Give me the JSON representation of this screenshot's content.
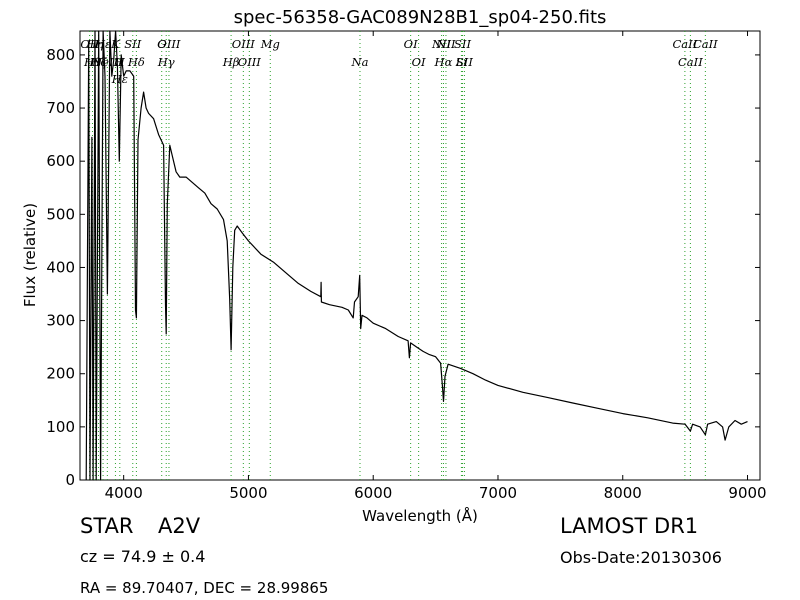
{
  "chart_data": {
    "type": "line",
    "title": "spec-56358-GAC089N28B1_sp04-250.fits",
    "xlabel": "Wavelength (Å)",
    "ylabel": "Flux (relative)",
    "xlim": [
      3650,
      9100
    ],
    "ylim": [
      0,
      845
    ],
    "xticks": [
      4000,
      5000,
      6000,
      7000,
      8000,
      9000
    ],
    "yticks": [
      0,
      100,
      200,
      300,
      400,
      500,
      600,
      700,
      800
    ],
    "grid": false,
    "line_color": "#000000",
    "line_marker_color": "#2ca02c",
    "spectrum": [
      [
        3700,
        0
      ],
      [
        3720,
        820
      ],
      [
        3730,
        0
      ],
      [
        3745,
        645
      ],
      [
        3755,
        0
      ],
      [
        3770,
        845
      ],
      [
        3780,
        0
      ],
      [
        3800,
        845
      ],
      [
        3815,
        0
      ],
      [
        3835,
        845
      ],
      [
        3850,
        760
      ],
      [
        3870,
        350
      ],
      [
        3890,
        845
      ],
      [
        3905,
        760
      ],
      [
        3920,
        790
      ],
      [
        3935,
        845
      ],
      [
        3950,
        780
      ],
      [
        3965,
        600
      ],
      [
        3980,
        800
      ],
      [
        4000,
        760
      ],
      [
        4020,
        770
      ],
      [
        4050,
        770
      ],
      [
        4080,
        760
      ],
      [
        4095,
        320
      ],
      [
        4102,
        305
      ],
      [
        4115,
        640
      ],
      [
        4140,
        700
      ],
      [
        4160,
        730
      ],
      [
        4180,
        700
      ],
      [
        4200,
        690
      ],
      [
        4240,
        680
      ],
      [
        4280,
        650
      ],
      [
        4320,
        630
      ],
      [
        4335,
        330
      ],
      [
        4341,
        275
      ],
      [
        4350,
        520
      ],
      [
        4370,
        630
      ],
      [
        4390,
        610
      ],
      [
        4420,
        580
      ],
      [
        4450,
        570
      ],
      [
        4500,
        570
      ],
      [
        4550,
        560
      ],
      [
        4600,
        550
      ],
      [
        4650,
        540
      ],
      [
        4700,
        520
      ],
      [
        4750,
        510
      ],
      [
        4800,
        490
      ],
      [
        4830,
        450
      ],
      [
        4850,
        340
      ],
      [
        4861,
        245
      ],
      [
        4875,
        400
      ],
      [
        4890,
        470
      ],
      [
        4910,
        478
      ],
      [
        4950,
        465
      ],
      [
        5000,
        450
      ],
      [
        5100,
        425
      ],
      [
        5200,
        410
      ],
      [
        5300,
        390
      ],
      [
        5400,
        370
      ],
      [
        5500,
        355
      ],
      [
        5580,
        345
      ],
      [
        5582,
        372
      ],
      [
        5585,
        335
      ],
      [
        5650,
        330
      ],
      [
        5750,
        325
      ],
      [
        5800,
        320
      ],
      [
        5840,
        305
      ],
      [
        5850,
        335
      ],
      [
        5880,
        345
      ],
      [
        5892,
        385
      ],
      [
        5900,
        285
      ],
      [
        5910,
        310
      ],
      [
        5950,
        305
      ],
      [
        6000,
        295
      ],
      [
        6100,
        285
      ],
      [
        6200,
        270
      ],
      [
        6280,
        262
      ],
      [
        6290,
        230
      ],
      [
        6300,
        258
      ],
      [
        6350,
        250
      ],
      [
        6400,
        242
      ],
      [
        6450,
        236
      ],
      [
        6500,
        232
      ],
      [
        6540,
        220
      ],
      [
        6555,
        175
      ],
      [
        6563,
        148
      ],
      [
        6575,
        195
      ],
      [
        6600,
        218
      ],
      [
        6700,
        210
      ],
      [
        6800,
        200
      ],
      [
        6900,
        188
      ],
      [
        7000,
        178
      ],
      [
        7200,
        165
      ],
      [
        7400,
        155
      ],
      [
        7600,
        145
      ],
      [
        7800,
        135
      ],
      [
        8000,
        125
      ],
      [
        8200,
        117
      ],
      [
        8400,
        107
      ],
      [
        8500,
        105
      ],
      [
        8542,
        92
      ],
      [
        8560,
        105
      ],
      [
        8620,
        100
      ],
      [
        8662,
        85
      ],
      [
        8680,
        105
      ],
      [
        8750,
        110
      ],
      [
        8800,
        100
      ],
      [
        8820,
        75
      ],
      [
        8850,
        100
      ],
      [
        8900,
        112
      ],
      [
        8950,
        105
      ],
      [
        9000,
        110
      ]
    ],
    "line_markers": [
      {
        "x": 3727,
        "labels": [
          "OII"
        ]
      },
      {
        "x": 3750,
        "labels": [
          "Hθ"
        ]
      },
      {
        "x": 3771,
        "labels": [
          "Hη"
        ]
      },
      {
        "x": 3798,
        "labels": [
          "Hζ"
        ]
      },
      {
        "x": 3835,
        "labels": [
          "Hε"
        ]
      },
      {
        "x": 3869,
        "labels": [
          "NeIII"
        ]
      },
      {
        "x": 3934,
        "labels": [
          "K"
        ]
      },
      {
        "x": 3969,
        "labels": [
          "H",
          "Hε"
        ]
      },
      {
        "x": 4073,
        "labels": [
          "SII"
        ]
      },
      {
        "x": 4102,
        "labels": [
          "Hδ"
        ]
      },
      {
        "x": 4305,
        "labels": [
          "G"
        ]
      },
      {
        "x": 4341,
        "labels": [
          "Hγ"
        ]
      },
      {
        "x": 4363,
        "labels": [
          "OIII"
        ]
      },
      {
        "x": 4861,
        "labels": [
          "Hβ"
        ]
      },
      {
        "x": 4959,
        "labels": [
          "OIII"
        ]
      },
      {
        "x": 5007,
        "labels": [
          "OIII"
        ]
      },
      {
        "x": 5175,
        "labels": [
          "Mg"
        ]
      },
      {
        "x": 5894,
        "labels": [
          "Na"
        ]
      },
      {
        "x": 6300,
        "labels": [
          "OI"
        ]
      },
      {
        "x": 6364,
        "labels": [
          "OI"
        ]
      },
      {
        "x": 6548,
        "labels": [
          "NII"
        ]
      },
      {
        "x": 6563,
        "labels": [
          "Hα"
        ]
      },
      {
        "x": 6583,
        "labels": [
          "NII"
        ]
      },
      {
        "x": 6707,
        "labels": [
          "Li"
        ]
      },
      {
        "x": 6716,
        "labels": [
          "SII"
        ]
      },
      {
        "x": 6731,
        "labels": [
          "SII"
        ]
      },
      {
        "x": 8498,
        "labels": [
          "CaII"
        ]
      },
      {
        "x": 8542,
        "labels": [
          "CaII"
        ]
      },
      {
        "x": 8662,
        "labels": [
          "CaII"
        ]
      }
    ]
  },
  "info": {
    "object_class": "STAR",
    "subclass": "A2V",
    "cz": "cz = 74.9 ± 0.4",
    "coords": "RA = 89.70407, DEC = 28.99865",
    "survey": "LAMOST DR1",
    "obs_date": "Obs-Date:20130306"
  }
}
